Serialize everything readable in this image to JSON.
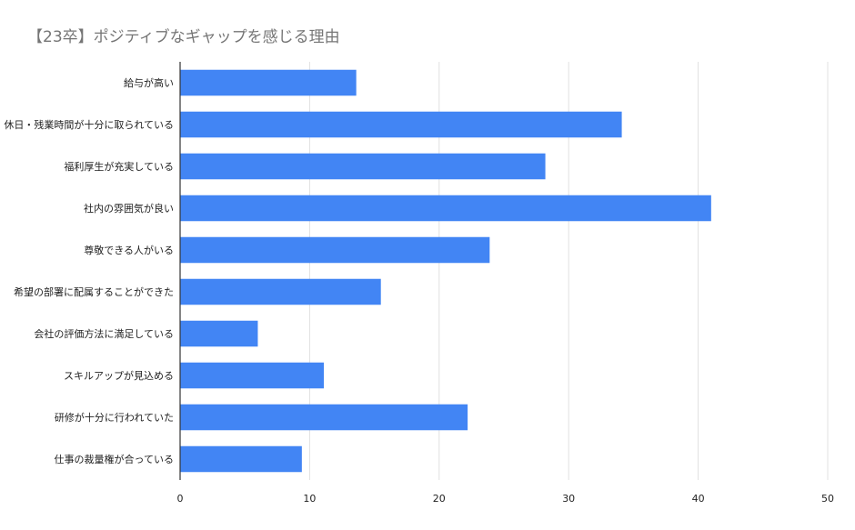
{
  "chart_data": {
    "type": "bar",
    "orientation": "horizontal",
    "title": "【23卒】ポジティブなギャップを感じる理由",
    "xlabel": "",
    "ylabel": "",
    "categories": [
      "給与が高い",
      "休日・残業時間が十分に取られている",
      "福利厚生が充実している",
      "社内の雰囲気が良い",
      "尊敬できる人がいる",
      "希望の部署に配属することができた",
      "会社の評価方法に満足している",
      "スキルアップが見込める",
      "研修が十分に行われていた",
      "仕事の裁量権が合っている"
    ],
    "values": [
      13.6,
      34.1,
      28.2,
      41,
      23.9,
      15.5,
      6,
      11.1,
      22.2,
      9.4
    ],
    "xlim": [
      0,
      50
    ],
    "xticks": [
      "0",
      "10",
      "20",
      "30",
      "40",
      "50"
    ],
    "grid": true,
    "legend": "none",
    "colors": {
      "bar": "#4285f4",
      "grid": "#e0e0e0",
      "axis": "#333333",
      "label": "#222222",
      "title": "#757575"
    }
  }
}
